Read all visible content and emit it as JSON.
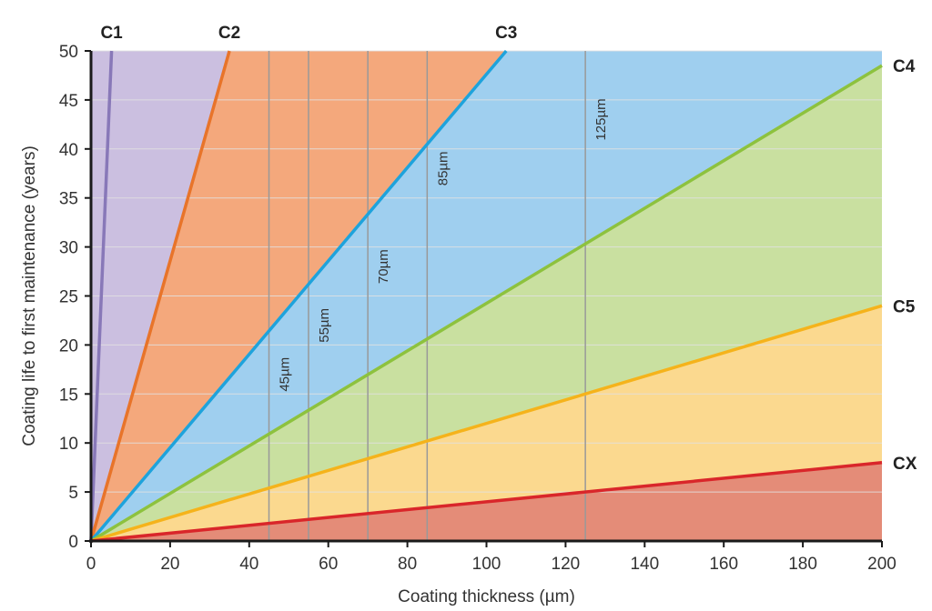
{
  "chart_data": {
    "type": "area",
    "xlabel": "Coating thickness (µm)",
    "ylabel": "Coating life to first maintenance (years)",
    "xlim": [
      0,
      200
    ],
    "ylim": [
      0,
      50
    ],
    "x_ticks": [
      0,
      20,
      40,
      60,
      80,
      100,
      120,
      140,
      160,
      180,
      200
    ],
    "y_ticks": [
      0,
      5,
      10,
      15,
      20,
      25,
      30,
      35,
      40,
      45,
      50
    ],
    "grid": "horizontal",
    "series": [
      {
        "name": "C1",
        "x": [
          0,
          5.2
        ],
        "y": [
          0,
          50
        ],
        "color": "#8878b8",
        "fill": "#cbbfe0"
      },
      {
        "name": "C2",
        "x": [
          0,
          35
        ],
        "y": [
          0,
          50
        ],
        "color": "#e8742a",
        "fill": "#f4a87c"
      },
      {
        "name": "C3",
        "x": [
          0,
          105
        ],
        "y": [
          0,
          50
        ],
        "color": "#1ea3dc",
        "fill": "#9fcfef"
      },
      {
        "name": "C4",
        "x": [
          0,
          200
        ],
        "y": [
          0,
          48.5
        ],
        "color": "#8dc23e",
        "fill": "#c9e0a0"
      },
      {
        "name": "C5",
        "x": [
          0,
          200
        ],
        "y": [
          0,
          24
        ],
        "color": "#f5b31b",
        "fill": "#fbd98f"
      },
      {
        "name": "CX",
        "x": [
          0,
          200
        ],
        "y": [
          0,
          8
        ],
        "color": "#d9262a",
        "fill": "#e48c78"
      }
    ],
    "reference_lines": [
      {
        "x": 45,
        "label": "45µm"
      },
      {
        "x": 55,
        "label": "55µm"
      },
      {
        "x": 70,
        "label": "70µm"
      },
      {
        "x": 85,
        "label": "85µm"
      },
      {
        "x": 125,
        "label": "125µm"
      }
    ],
    "colors": {
      "axis": "#1a1a1a",
      "grid": "#e2e2e2",
      "reference_line": "#999999",
      "text": "#333333"
    }
  }
}
